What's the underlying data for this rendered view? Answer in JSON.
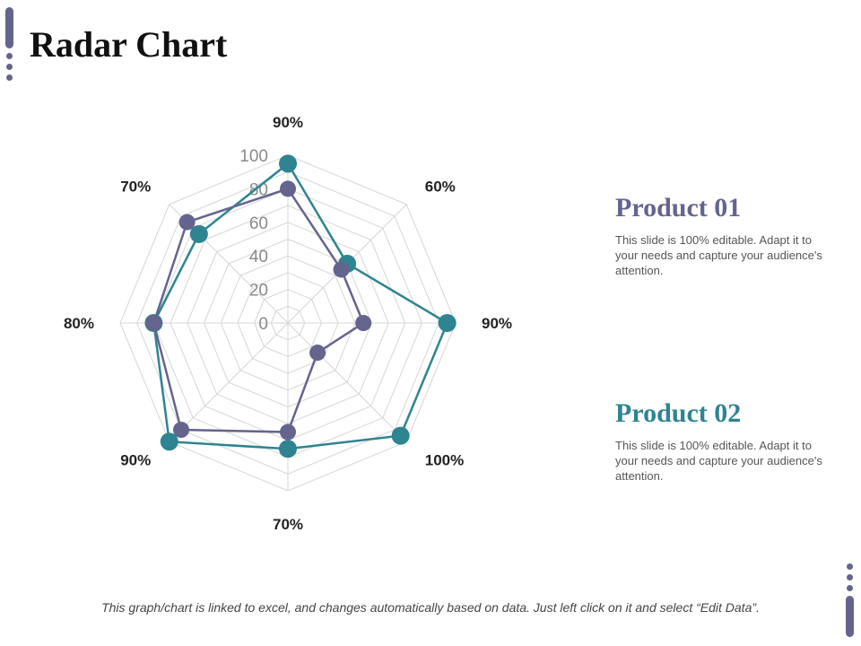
{
  "page": {
    "title": "Radar Chart"
  },
  "colors": {
    "product_01": "#64648e",
    "product_02": "#2e8490",
    "grid": "#d6d6d6",
    "accent_deco": "#64648e"
  },
  "chart_data": {
    "type": "radar",
    "categories": [
      "90%",
      "60%",
      "90%",
      "100%",
      "70%",
      "90%",
      "80%",
      "70%"
    ],
    "radial_ticks": [
      "0",
      "20",
      "40",
      "60",
      "80",
      "100"
    ],
    "rlim": [
      0,
      100
    ],
    "grid": true,
    "series": [
      {
        "name": "Product 01",
        "values": [
          80,
          45,
          45,
          25,
          65,
          90,
          80,
          85
        ]
      },
      {
        "name": "Product 02",
        "values": [
          95,
          50,
          95,
          95,
          75,
          100,
          80,
          75
        ]
      }
    ]
  },
  "legend": [
    {
      "name": "Product 01",
      "text": "This slide is 100% editable. Adapt it to your needs and capture your audience's attention."
    },
    {
      "name": "Product 02",
      "text": "This slide is 100% editable. Adapt it to your needs and capture your audience's attention."
    }
  ],
  "footnote": "This graph/chart is linked to excel, and changes automatically based on data. Just left click on it and select “Edit Data”."
}
